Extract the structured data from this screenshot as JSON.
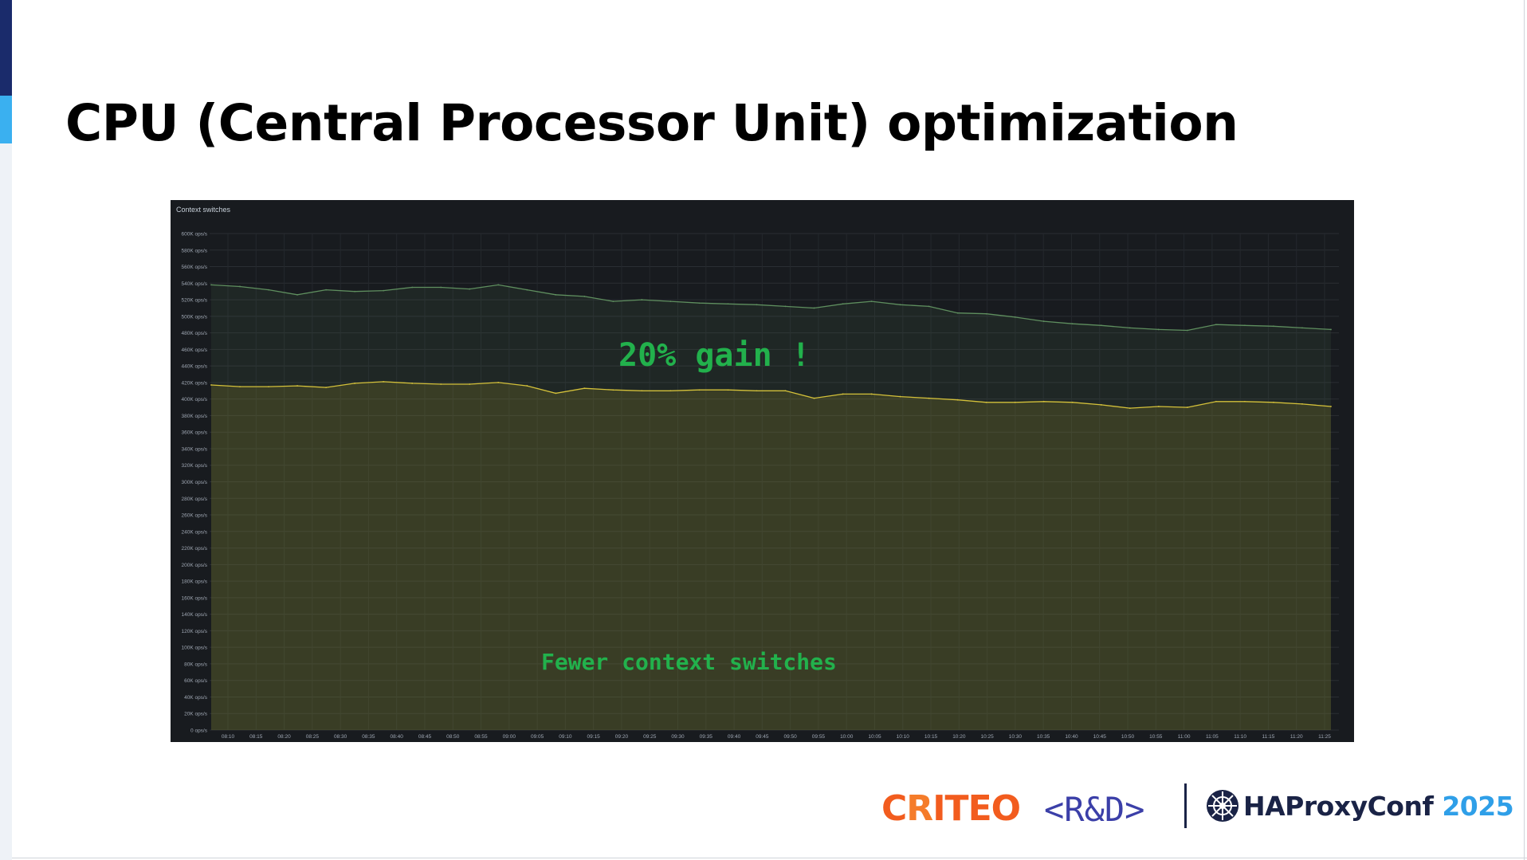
{
  "slide": {
    "title": "CPU (Central Processor Unit) optimization"
  },
  "colors": {
    "accent_dark": "#1a2b6b",
    "accent_light": "#3ab0f0",
    "panel_bg": "#181b1f",
    "series_before": "#5f8f5f",
    "series_after": "#d4c13a",
    "annotation": "#22b14c",
    "criteo": "#f25c1e"
  },
  "chart_data": {
    "type": "area",
    "title": "Context switches",
    "ylim": [
      0,
      600000
    ],
    "y_tick_values": [
      0,
      20000,
      40000,
      60000,
      80000,
      100000,
      120000,
      140000,
      160000,
      180000,
      200000,
      220000,
      240000,
      260000,
      280000,
      300000,
      320000,
      340000,
      360000,
      380000,
      400000,
      420000,
      440000,
      460000,
      480000,
      500000,
      520000,
      540000,
      560000,
      580000,
      600000
    ],
    "y_tick_labels": [
      "0 ops/s",
      "20K ops/s",
      "40K ops/s",
      "60K ops/s",
      "80K ops/s",
      "100K ops/s",
      "120K ops/s",
      "140K ops/s",
      "160K ops/s",
      "180K ops/s",
      "200K ops/s",
      "220K ops/s",
      "240K ops/s",
      "260K ops/s",
      "280K ops/s",
      "300K ops/s",
      "320K ops/s",
      "340K ops/s",
      "360K ops/s",
      "380K ops/s",
      "400K ops/s",
      "420K ops/s",
      "440K ops/s",
      "460K ops/s",
      "480K ops/s",
      "500K ops/s",
      "520K ops/s",
      "540K ops/s",
      "560K ops/s",
      "580K ops/s",
      "600K ops/s"
    ],
    "x": [
      "08:10",
      "08:15",
      "08:20",
      "08:25",
      "08:30",
      "08:35",
      "08:40",
      "08:45",
      "08:50",
      "08:55",
      "09:00",
      "09:05",
      "09:10",
      "09:15",
      "09:20",
      "09:25",
      "09:30",
      "09:35",
      "09:40",
      "09:45",
      "09:50",
      "09:55",
      "10:00",
      "10:05",
      "10:10",
      "10:15",
      "10:20",
      "10:25",
      "10:30",
      "10:35",
      "10:40",
      "10:45",
      "10:50",
      "10:55",
      "11:00",
      "11:05",
      "11:10",
      "11:15",
      "11:20",
      "11:25"
    ],
    "series": [
      {
        "values": [
          538000,
          536000,
          532000,
          526000,
          532000,
          530000,
          531000,
          535000,
          535000,
          533000,
          538000,
          532000,
          526000,
          524000,
          518000,
          520000,
          518000,
          516000,
          515000,
          514000,
          512000,
          510000,
          515000,
          518000,
          514000,
          512000,
          504000,
          503000,
          499000,
          494000,
          491000,
          489000,
          486000,
          484000,
          483000,
          490000,
          489000,
          488000,
          486000,
          484000
        ]
      },
      {
        "values": [
          417000,
          415000,
          415000,
          416000,
          414000,
          419000,
          421000,
          419000,
          418000,
          418000,
          420000,
          416000,
          407000,
          413000,
          411000,
          410000,
          410000,
          411000,
          411000,
          410000,
          410000,
          401000,
          406000,
          406000,
          403000,
          401000,
          399000,
          396000,
          396000,
          397000,
          396000,
          393000,
          389000,
          391000,
          390000,
          397000,
          397000,
          396000,
          394000,
          391000
        ]
      }
    ],
    "grid": true,
    "annotations": [
      "20% gain !",
      "Fewer context switches"
    ]
  },
  "footer": {
    "brand_c": "C",
    "brand_r": "R",
    "brand_rest": "ITEO",
    "division": "<R&D>",
    "conference_name": "HAProxyConf",
    "conference_year": "2025",
    "conference_icon": "haproxy-logo-icon"
  }
}
